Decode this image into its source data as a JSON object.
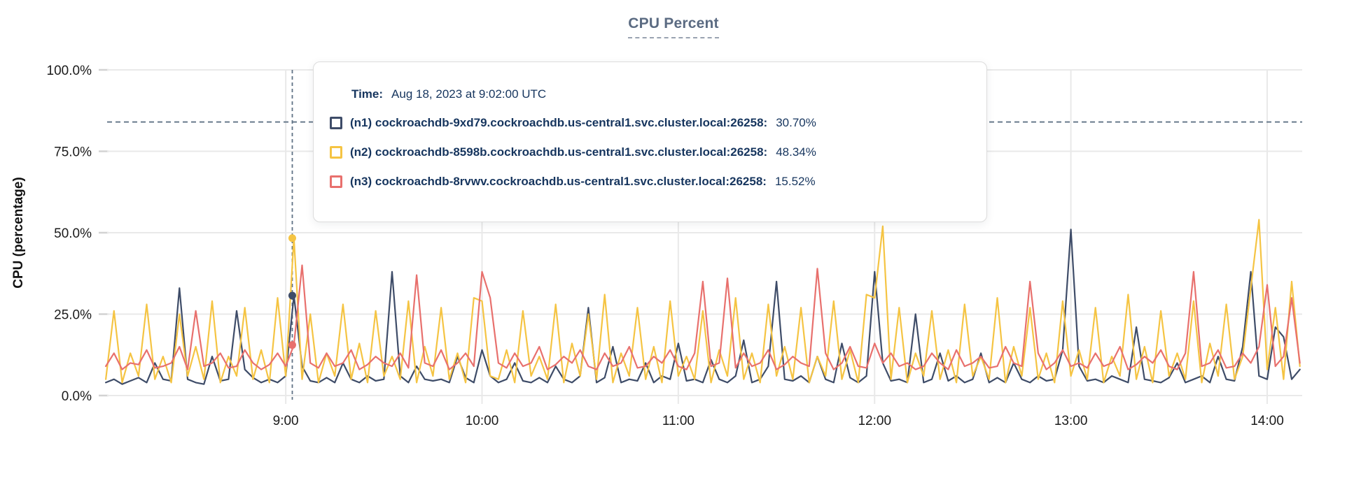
{
  "title": "CPU Percent",
  "y_axis_label": "CPU (percentage)",
  "tooltip": {
    "time_label": "Time:",
    "time_value": "Aug 18, 2023 at 9:02:00 UTC",
    "rows": [
      {
        "name": "(n1) cockroachdb-9xd79.cockroachdb.us-central1.svc.cluster.local:26258:",
        "value": "30.70%"
      },
      {
        "name": "(n2) cockroachdb-8598b.cockroachdb.us-central1.svc.cluster.local:26258:",
        "value": "48.34%"
      },
      {
        "name": "(n3) cockroachdb-8rvwv.cockroachdb.us-central1.svc.cluster.local:26258:",
        "value": "15.52%"
      }
    ]
  },
  "colors": {
    "n1": "#3e4c68",
    "n2": "#f5c443",
    "n3": "#e8706d",
    "grid": "#e9e9e9",
    "tick": "#d2d2d2",
    "threshold_line": "#5f7285",
    "cursor_line": "#5f7285",
    "axis_text": "#1b1b1b"
  },
  "chart_data": {
    "type": "line",
    "title": "CPU Percent",
    "xlabel": "",
    "ylabel": "CPU (percentage)",
    "ylim": [
      0,
      100
    ],
    "grid": true,
    "legend_position": "tooltip-overlay",
    "x_unit": "time of day UTC on Aug 18, 2023 (minutes since midnight)",
    "x_range_minutes": [
      485.4,
      850.7
    ],
    "x_ticks": [
      {
        "minutes": 540,
        "label": "9:00"
      },
      {
        "minutes": 600,
        "label": "10:00"
      },
      {
        "minutes": 660,
        "label": "11:00"
      },
      {
        "minutes": 720,
        "label": "12:00"
      },
      {
        "minutes": 780,
        "label": "13:00"
      },
      {
        "minutes": 840,
        "label": "14:00"
      }
    ],
    "y_ticks": [
      {
        "value": 0,
        "label": "0.0%"
      },
      {
        "value": 25,
        "label": "25.0%"
      },
      {
        "value": 50,
        "label": "50.0%"
      },
      {
        "value": 75,
        "label": "75.0%"
      },
      {
        "value": 100,
        "label": "100.0%"
      }
    ],
    "threshold_percent": 84,
    "cursor": {
      "minutes": 542,
      "time_label": "Aug 18, 2023 at 9:02:00 UTC",
      "values": [
        30.7,
        48.34,
        15.52
      ]
    },
    "sample_start_minutes": 485,
    "sample_step_minutes": 2.5,
    "series": [
      {
        "id": "n1",
        "name": "(n1) cockroachdb-9xd79.cockroachdb.us-central1.svc.cluster.local:26258",
        "color": "#3e4c68",
        "values": [
          4,
          5,
          3.5,
          4.5,
          5.5,
          4,
          10,
          5,
          4.5,
          33,
          5,
          4,
          3.5,
          12,
          4.5,
          5,
          26,
          8,
          5.5,
          4,
          5,
          4,
          6,
          30.7,
          9,
          4.5,
          4,
          5.5,
          4,
          10,
          5,
          4,
          6,
          4.5,
          5,
          38,
          6,
          4,
          9,
          5,
          4.5,
          5,
          4,
          12,
          5.5,
          4,
          14,
          6,
          4,
          5,
          10,
          4.5,
          4,
          5.5,
          4,
          9,
          5,
          4,
          6,
          27,
          4,
          5.5,
          15,
          4,
          5,
          4.5,
          10,
          4,
          6,
          5,
          16,
          4.5,
          5,
          4,
          11,
          5,
          4,
          6,
          17,
          4,
          5,
          9,
          35,
          5,
          4.5,
          6,
          4,
          12,
          5,
          4,
          16,
          5.5,
          4,
          6,
          38,
          10,
          4.5,
          5,
          4,
          25,
          4,
          5,
          13,
          4.5,
          6,
          4,
          5,
          13,
          4,
          5.5,
          4,
          10,
          5,
          4,
          6,
          4.5,
          5,
          14,
          51,
          9,
          4.5,
          5,
          4,
          6,
          5,
          4,
          21,
          5,
          4.5,
          4,
          5.5,
          10,
          4,
          5,
          6,
          4,
          12,
          5,
          4.5,
          15,
          38,
          6,
          5,
          21,
          18,
          5,
          8
        ]
      },
      {
        "id": "n2",
        "name": "(n2) cockroachdb-8598b.cockroachdb.us-central1.svc.cluster.local:26258",
        "color": "#f5c443",
        "values": [
          5,
          26,
          4,
          13,
          6,
          28,
          5,
          12,
          4,
          25,
          6,
          15,
          5,
          29,
          4,
          12,
          6,
          27,
          5,
          14,
          4,
          30,
          6,
          48.34,
          5,
          25,
          4,
          13,
          6,
          28,
          5,
          16,
          4,
          26,
          6,
          12,
          5,
          29,
          4,
          15,
          6,
          27,
          5,
          13,
          4,
          30,
          29,
          6,
          5,
          14,
          4,
          26,
          6,
          12,
          5,
          28,
          4,
          16,
          6,
          25,
          5,
          31,
          4,
          13,
          6,
          27,
          5,
          15,
          4,
          29,
          6,
          12,
          5,
          26,
          4,
          14,
          6,
          30,
          5,
          13,
          4,
          28,
          6,
          15,
          5,
          27,
          4,
          12,
          6,
          29,
          5,
          14,
          4,
          31,
          30,
          52,
          5,
          27,
          4,
          13,
          6,
          26,
          5,
          14,
          4,
          28,
          6,
          12,
          5,
          30,
          4,
          15,
          6,
          27,
          5,
          13,
          4,
          29,
          6,
          14,
          5,
          27,
          4,
          12,
          6,
          31,
          5,
          15,
          4,
          26,
          6,
          13,
          5,
          29,
          4,
          16,
          6,
          28,
          5,
          12,
          33,
          54,
          8,
          27,
          5,
          35,
          9
        ]
      },
      {
        "id": "n3",
        "name": "(n3) cockroachdb-8rvwv.cockroachdb.us-central1.svc.cluster.local:26258",
        "color": "#e8706d",
        "values": [
          9,
          13,
          8,
          10,
          9.5,
          14,
          8.5,
          9,
          10,
          15,
          8,
          26,
          9,
          10,
          13,
          8.5,
          9,
          14,
          10,
          8,
          9.5,
          13,
          9,
          15.52,
          40,
          10,
          8.5,
          13,
          9,
          10,
          14,
          8,
          9.5,
          12,
          10,
          9,
          13,
          8.5,
          37,
          10,
          9,
          14,
          8,
          10,
          13,
          9,
          38,
          30,
          10,
          8.5,
          13,
          9,
          10,
          15,
          8,
          9.5,
          12,
          10,
          14,
          9,
          8,
          13,
          9,
          10,
          15,
          8.5,
          9,
          12,
          10,
          14,
          9,
          8,
          13,
          35,
          9,
          10,
          36,
          8.5,
          13,
          9,
          10,
          14,
          8,
          9.5,
          12,
          10,
          9,
          39,
          13,
          8,
          10,
          15,
          9,
          8.5,
          16,
          10,
          13,
          9,
          10,
          8,
          9,
          13,
          10,
          8,
          14,
          9,
          10,
          12,
          8.5,
          9,
          15,
          10,
          9,
          35,
          13,
          8,
          10,
          14,
          9,
          10,
          8.5,
          13,
          9,
          10,
          15,
          8,
          9.5,
          12,
          10,
          14,
          9,
          8,
          13,
          38,
          9,
          10,
          14,
          8.5,
          9,
          13,
          10,
          15,
          34,
          9,
          12,
          30,
          10
        ]
      }
    ]
  }
}
